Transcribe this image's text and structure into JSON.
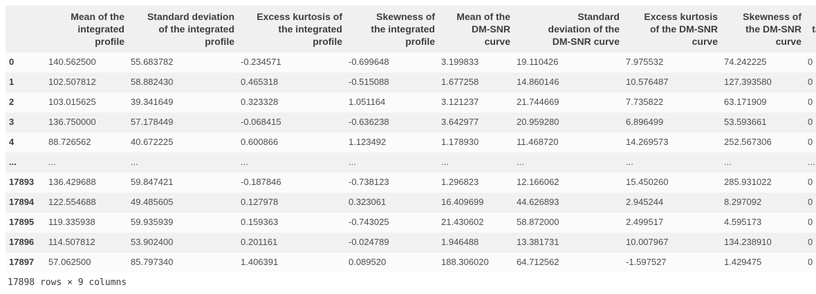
{
  "table": {
    "index_header": "",
    "columns": [
      "Mean of the\nintegrated\nprofile",
      "Standard deviation\nof the integrated\nprofile",
      "Excess kurtosis of\nthe integrated\nprofile",
      "Skewness of\nthe integrated\nprofile",
      "Mean of the\nDM-SNR\ncurve",
      "Standard\ndeviation of the\nDM-SNR curve",
      "Excess kurtosis\nof the DM-SNR\ncurve",
      "Skewness of\nthe DM-SNR\ncurve",
      "target_class"
    ],
    "rows": [
      {
        "index": "0",
        "cells": [
          "140.562500",
          "55.683782",
          "-0.234571",
          "-0.699648",
          "3.199833",
          "19.110426",
          "7.975532",
          "74.242225",
          "0"
        ]
      },
      {
        "index": "1",
        "cells": [
          "102.507812",
          "58.882430",
          "0.465318",
          "-0.515088",
          "1.677258",
          "14.860146",
          "10.576487",
          "127.393580",
          "0"
        ]
      },
      {
        "index": "2",
        "cells": [
          "103.015625",
          "39.341649",
          "0.323328",
          "1.051164",
          "3.121237",
          "21.744669",
          "7.735822",
          "63.171909",
          "0"
        ]
      },
      {
        "index": "3",
        "cells": [
          "136.750000",
          "57.178449",
          "-0.068415",
          "-0.636238",
          "3.642977",
          "20.959280",
          "6.896499",
          "53.593661",
          "0"
        ]
      },
      {
        "index": "4",
        "cells": [
          "88.726562",
          "40.672225",
          "0.600866",
          "1.123492",
          "1.178930",
          "11.468720",
          "14.269573",
          "252.567306",
          "0"
        ]
      },
      {
        "index": "...",
        "cells": [
          "...",
          "...",
          "...",
          "...",
          "...",
          "...",
          "...",
          "...",
          "..."
        ]
      },
      {
        "index": "17893",
        "cells": [
          "136.429688",
          "59.847421",
          "-0.187846",
          "-0.738123",
          "1.296823",
          "12.166062",
          "15.450260",
          "285.931022",
          "0"
        ]
      },
      {
        "index": "17894",
        "cells": [
          "122.554688",
          "49.485605",
          "0.127978",
          "0.323061",
          "16.409699",
          "44.626893",
          "2.945244",
          "8.297092",
          "0"
        ]
      },
      {
        "index": "17895",
        "cells": [
          "119.335938",
          "59.935939",
          "0.159363",
          "-0.743025",
          "21.430602",
          "58.872000",
          "2.499517",
          "4.595173",
          "0"
        ]
      },
      {
        "index": "17896",
        "cells": [
          "114.507812",
          "53.902400",
          "0.201161",
          "-0.024789",
          "1.946488",
          "13.381731",
          "10.007967",
          "134.238910",
          "0"
        ]
      },
      {
        "index": "17897",
        "cells": [
          "57.062500",
          "85.797340",
          "1.406391",
          "0.089520",
          "188.306020",
          "64.712562",
          "-1.597527",
          "1.429475",
          "0"
        ]
      }
    ],
    "footer": "17898 rows × 9 columns"
  },
  "colors": {
    "header_bg": "#f0f0f0",
    "row_stripe_bg": "#f1f1f1",
    "row_bg": "#fbfbfb",
    "header_text": "#3d3d3d",
    "cell_text": "#4d4d4d"
  }
}
